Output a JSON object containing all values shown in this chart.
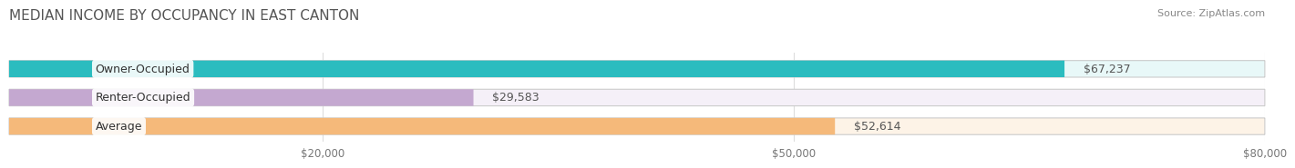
{
  "title": "MEDIAN INCOME BY OCCUPANCY IN EAST CANTON",
  "source": "Source: ZipAtlas.com",
  "categories": [
    "Owner-Occupied",
    "Renter-Occupied",
    "Average"
  ],
  "values": [
    67237,
    29583,
    52614
  ],
  "labels": [
    "$67,237",
    "$29,583",
    "$52,614"
  ],
  "bar_colors": [
    "#2bbcbf",
    "#c4a8d0",
    "#f5b97a"
  ],
  "bar_background_colors": [
    "#e8f8f8",
    "#f5f0f8",
    "#fdf3e7"
  ],
  "xmax": 80000,
  "xticks": [
    0,
    20000,
    50000,
    80000
  ],
  "xticklabels": [
    "",
    "$20,000",
    "$50,000",
    "$80,000"
  ],
  "label_color": "#555555",
  "title_color": "#555555",
  "source_color": "#888888",
  "title_fontsize": 11,
  "bar_height": 0.55,
  "label_fontsize": 9,
  "category_fontsize": 9
}
